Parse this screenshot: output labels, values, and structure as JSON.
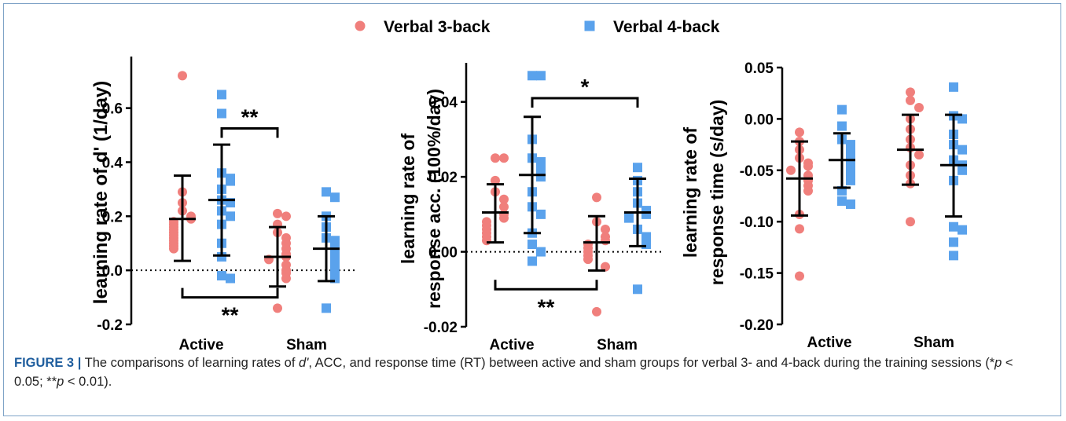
{
  "colors": {
    "series_3back": "#f07f7c",
    "series_4back": "#5aa2ec",
    "ink": "#000000"
  },
  "legend": [
    {
      "label": "Verbal 3-back",
      "marker": "circle",
      "color": "#f07f7c"
    },
    {
      "label": "Verbal 4-back",
      "marker": "square",
      "color": "#5aa2ec"
    }
  ],
  "chart_data": [
    {
      "type": "scatter",
      "ylabel_lines": [
        "learning rate of d' (1/day)"
      ],
      "ylim": [
        -0.2,
        0.75
      ],
      "yticks": [
        -0.2,
        0.0,
        0.2,
        0.4,
        0.6
      ],
      "ytick_labels": [
        "-0.2",
        "0.0",
        "0.2",
        "0.4",
        "0.6"
      ],
      "categories": [
        "Active",
        "Sham"
      ],
      "zero_line": true,
      "series": [
        {
          "name": "Verbal 3-back",
          "points": [
            [
              0.72,
              0.29,
              0.25,
              0.22,
              0.2,
              0.19,
              0.18,
              0.17,
              0.16,
              0.15,
              0.14,
              0.13,
              0.12,
              0.11,
              0.1,
              0.09,
              0.08
            ],
            [
              0.21,
              0.2,
              0.17,
              0.14,
              0.12,
              0.1,
              0.08,
              0.06,
              0.05,
              0.04,
              0.02,
              0.0,
              -0.01,
              -0.03,
              -0.14
            ]
          ],
          "mean": [
            0.19,
            0.05
          ],
          "sd_upper": [
            0.35,
            0.16
          ],
          "sd_lower": [
            0.035,
            -0.06
          ]
        },
        {
          "name": "Verbal 4-back",
          "points": [
            [
              0.65,
              0.58,
              0.36,
              0.34,
              0.33,
              0.3,
              0.26,
              0.25,
              0.22,
              0.2,
              0.17,
              0.1,
              0.05,
              -0.02,
              -0.03
            ],
            [
              0.29,
              0.27,
              0.2,
              0.16,
              0.12,
              0.11,
              0.09,
              0.07,
              0.05,
              0.03,
              0.01,
              -0.01,
              -0.03,
              -0.14
            ]
          ],
          "mean": [
            0.26,
            0.08
          ],
          "sd_upper": [
            0.465,
            0.2
          ],
          "sd_lower": [
            0.055,
            -0.04
          ]
        }
      ],
      "annotations": [
        {
          "text": "**",
          "from": [
            0,
            "Verbal 4-back"
          ],
          "to": [
            1,
            "Verbal 3-back"
          ],
          "bracket_y": 0.525,
          "side": "top"
        },
        {
          "text": "**",
          "from": [
            0,
            "Verbal 3-back"
          ],
          "to": [
            1,
            "Verbal 3-back"
          ],
          "bracket_y": -0.1,
          "side": "bottom"
        }
      ]
    },
    {
      "type": "scatter",
      "ylabel_lines": [
        "learning rate of",
        "response acc. (100%/day)"
      ],
      "ylim": [
        -0.02,
        0.05
      ],
      "yticks": [
        -0.02,
        0.0,
        0.02,
        0.04
      ],
      "ytick_labels": [
        "-0.02",
        "0.00",
        "0.02",
        "0.04"
      ],
      "categories": [
        "Active",
        "Sham"
      ],
      "zero_line": true,
      "series": [
        {
          "name": "Verbal 3-back",
          "points": [
            [
              0.025,
              0.025,
              0.019,
              0.016,
              0.014,
              0.012,
              0.01,
              0.009,
              0.008,
              0.007,
              0.006,
              0.005,
              0.004,
              0.003
            ],
            [
              0.0145,
              0.008,
              0.006,
              0.004,
              0.003,
              0.002,
              0.001,
              0.0,
              -0.001,
              -0.002,
              -0.004,
              -0.016
            ]
          ],
          "mean": [
            0.0105,
            0.0025
          ],
          "sd_upper": [
            0.018,
            0.0095
          ],
          "sd_lower": [
            0.0025,
            -0.005
          ]
        },
        {
          "name": "Verbal 4-back",
          "points": [
            [
              0.047,
              0.047,
              0.03,
              0.025,
              0.024,
              0.022,
              0.02,
              0.016,
              0.012,
              0.01,
              0.005,
              0.002,
              0.0,
              -0.0025
            ],
            [
              0.0225,
              0.019,
              0.016,
              0.013,
              0.011,
              0.01,
              0.009,
              0.006,
              0.004,
              0.002,
              -0.01
            ]
          ],
          "mean": [
            0.0205,
            0.0105
          ],
          "sd_upper": [
            0.036,
            0.0195
          ],
          "sd_lower": [
            0.005,
            0.0015
          ]
        }
      ],
      "annotations": [
        {
          "text": "*",
          "from": [
            0,
            "Verbal 4-back"
          ],
          "to": [
            1,
            "Verbal 4-back"
          ],
          "bracket_y": 0.041,
          "side": "top"
        },
        {
          "text": "**",
          "from": [
            0,
            "Verbal 3-back"
          ],
          "to": [
            1,
            "Verbal 3-back"
          ],
          "bracket_y": -0.01,
          "side": "bottom"
        }
      ]
    },
    {
      "type": "scatter",
      "ylabel_lines": [
        "learning rate of",
        "response time (s/day)"
      ],
      "ylim": [
        -0.2,
        0.05
      ],
      "yticks": [
        -0.2,
        -0.15,
        -0.1,
        -0.05,
        0.0,
        0.05
      ],
      "ytick_labels": [
        "-0.20",
        "-0.15",
        "-0.10",
        "-0.05",
        "0.00",
        "0.05"
      ],
      "categories": [
        "Active",
        "Sham"
      ],
      "zero_line": false,
      "series": [
        {
          "name": "Verbal 3-back",
          "points": [
            [
              -0.013,
              -0.022,
              -0.03,
              -0.038,
              -0.043,
              -0.046,
              -0.05,
              -0.055,
              -0.06,
              -0.065,
              -0.07,
              -0.093,
              -0.107,
              -0.153
            ],
            [
              0.026,
              0.018,
              0.011,
              0.0,
              -0.01,
              -0.02,
              -0.028,
              -0.035,
              -0.045,
              -0.055,
              -0.063,
              -0.1
            ]
          ],
          "mean": [
            -0.058,
            -0.03
          ],
          "sd_upper": [
            -0.022,
            0.004
          ],
          "sd_lower": [
            -0.094,
            -0.064
          ]
        },
        {
          "name": "Verbal 4-back",
          "points": [
            [
              0.009,
              -0.007,
              -0.02,
              -0.025,
              -0.03,
              -0.035,
              -0.04,
              -0.045,
              -0.05,
              -0.055,
              -0.06,
              -0.07,
              -0.08,
              -0.083
            ],
            [
              0.031,
              0.003,
              0.0,
              -0.015,
              -0.025,
              -0.03,
              -0.04,
              -0.045,
              -0.05,
              -0.06,
              -0.105,
              -0.108,
              -0.12,
              -0.133
            ]
          ],
          "mean": [
            -0.04,
            -0.045
          ],
          "sd_upper": [
            -0.014,
            0.004
          ],
          "sd_lower": [
            -0.067,
            -0.095
          ]
        }
      ],
      "annotations": []
    }
  ],
  "caption": {
    "label": "FIGURE 3",
    "separator": "|",
    "text_before_d": "The comparisons of learning rates of ",
    "d_symbol": "d'",
    "text_after_d": ", ACC, and response time (RT) between active and sham groups for verbal 3- and 4-back during the training sessions (",
    "stat1_stars": "*",
    "stat1_p": "p",
    "stat1_rest": " < 0.05; ",
    "stat2_stars": "**",
    "stat2_p": "p",
    "stat2_rest": " < 0.01)."
  }
}
